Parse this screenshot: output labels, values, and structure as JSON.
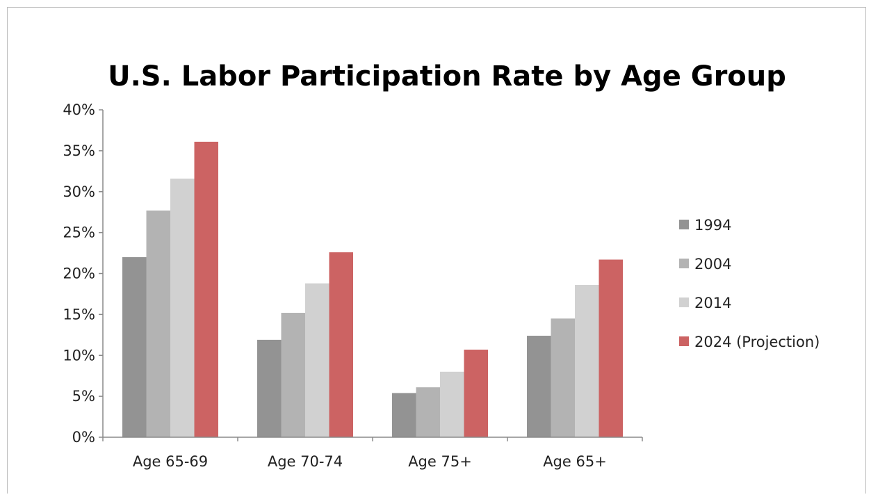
{
  "chart_data": {
    "type": "bar",
    "title": "U.S. Labor Participation Rate by Age Group",
    "xlabel": "",
    "ylabel": "",
    "categories": [
      "Age 65-69",
      "Age 70-74",
      "Age 75+",
      "Age 65+"
    ],
    "series": [
      {
        "name": "1994",
        "values": [
          22.0,
          11.9,
          5.4,
          12.4
        ],
        "color": "#939393"
      },
      {
        "name": "2004",
        "values": [
          27.7,
          15.2,
          6.1,
          14.5
        ],
        "color": "#b3b3b3"
      },
      {
        "name": "2014",
        "values": [
          31.6,
          18.8,
          8.0,
          18.6
        ],
        "color": "#d1d1d1"
      },
      {
        "name": "2024 (Projection)",
        "values": [
          36.1,
          22.6,
          10.7,
          21.7
        ],
        "color": "#cc6363"
      }
    ],
    "ylim": [
      0,
      40
    ],
    "yticks": [
      "0%",
      "5%",
      "10%",
      "15%",
      "20%",
      "25%",
      "30%",
      "35%",
      "40%"
    ],
    "ytick_values": [
      0,
      5,
      10,
      15,
      20,
      25,
      30,
      35,
      40
    ],
    "grid": false,
    "legend_position": "right"
  }
}
